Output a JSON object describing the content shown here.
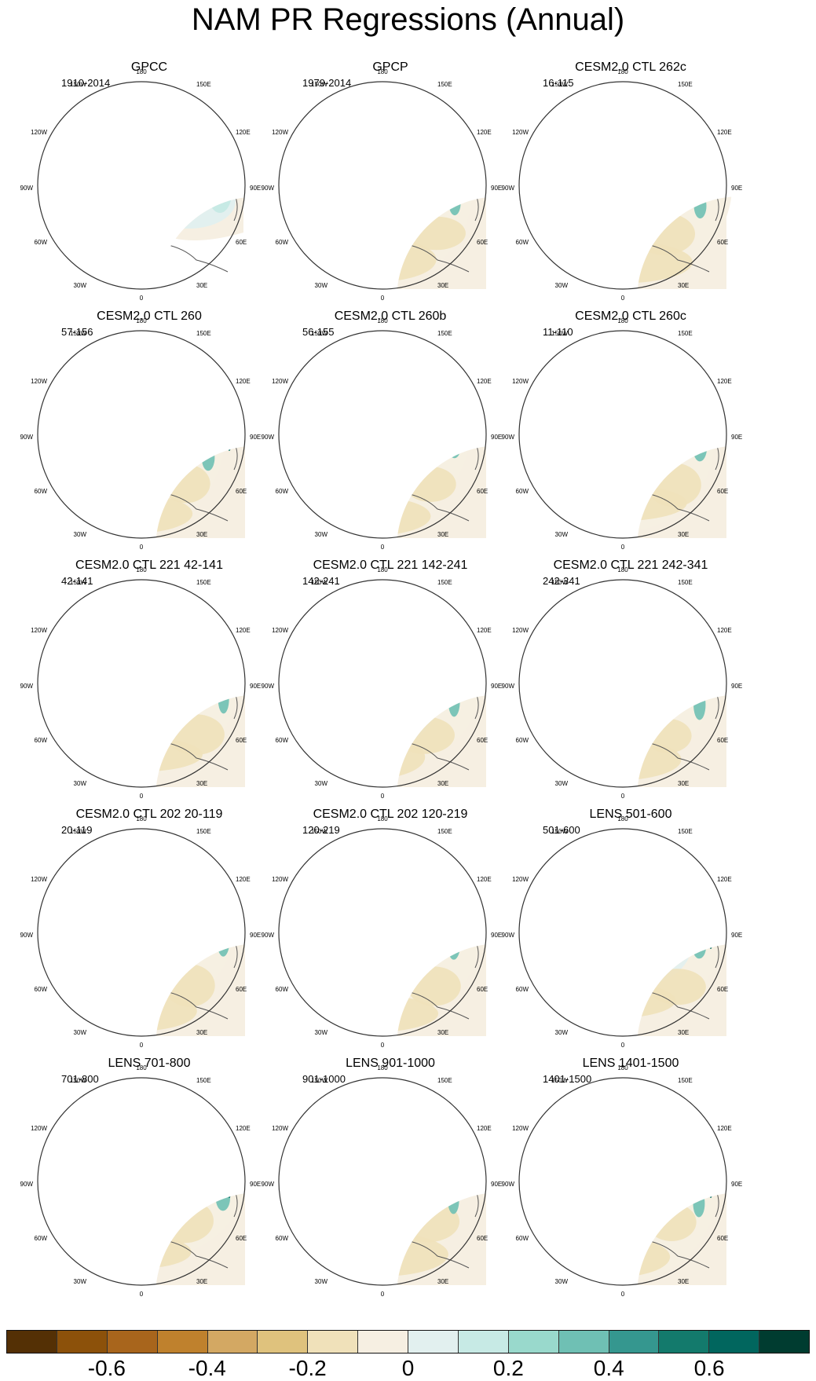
{
  "title": "NAM PR Regressions (Annual)",
  "lon_labels": {
    "top": "180",
    "tl": "150W",
    "tr": "150E",
    "l1": "120W",
    "r1": "120E",
    "l2": "90W",
    "r2": "90E",
    "l3": "60W",
    "r3": "60E",
    "bl": "30W",
    "br": "30E",
    "bottom": "0"
  },
  "panels": [
    {
      "title": "GPCC",
      "period": "1910-2014",
      "missing_ocean": true
    },
    {
      "title": "GPCP",
      "period": "1979-2014",
      "missing_ocean": false
    },
    {
      "title": "CESM2.0 CTL 262c",
      "period": "16-115",
      "missing_ocean": false
    },
    {
      "title": "CESM2.0 CTL 260",
      "period": "57-156",
      "missing_ocean": false
    },
    {
      "title": "CESM2.0 CTL 260b",
      "period": "56-155",
      "missing_ocean": false
    },
    {
      "title": "CESM2.0 CTL 260c",
      "period": "11-110",
      "missing_ocean": false
    },
    {
      "title": "CESM2.0 CTL 221 42-141",
      "period": "42-141",
      "missing_ocean": false
    },
    {
      "title": "CESM2.0 CTL 221 142-241",
      "period": "142-241",
      "missing_ocean": false
    },
    {
      "title": "CESM2.0 CTL 221 242-341",
      "period": "242-341",
      "missing_ocean": false
    },
    {
      "title": "CESM2.0 CTL 202 20-119",
      "period": "20-119",
      "missing_ocean": false
    },
    {
      "title": "CESM2.0 CTL 202 120-219",
      "period": "120-219",
      "missing_ocean": false
    },
    {
      "title": "LENS 501-600",
      "period": "501-600",
      "missing_ocean": false
    },
    {
      "title": "LENS 701-800",
      "period": "701-800",
      "missing_ocean": false
    },
    {
      "title": "LENS 901-1000",
      "period": "901-1000",
      "missing_ocean": false
    },
    {
      "title": "LENS 1401-1500",
      "period": "1401-1500",
      "missing_ocean": false
    }
  ],
  "colorbar": {
    "colors": [
      "#543005",
      "#8c510a",
      "#a8651c",
      "#bf812d",
      "#d3a863",
      "#dfc27d",
      "#f0e1ba",
      "#f6efe2",
      "#e2f0ef",
      "#c7eae5",
      "#99d9cc",
      "#6fc0b4",
      "#35978f",
      "#137a6c",
      "#01665e",
      "#003c30"
    ],
    "tick_labels": [
      "-0.6",
      "-0.4",
      "-0.2",
      "0",
      "0.2",
      "0.4",
      "0.6"
    ]
  }
}
